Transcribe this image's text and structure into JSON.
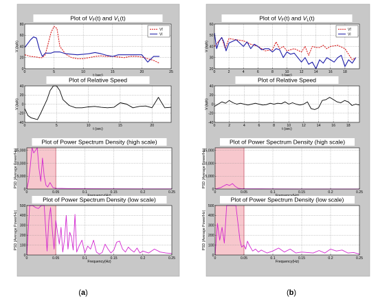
{
  "figure": {
    "captions": [
      {
        "open": "(",
        "letter": "a",
        "close": ")"
      },
      {
        "open": "(",
        "letter": "b",
        "close": ")"
      }
    ]
  },
  "colors": {
    "panel_bg": "#c8c8c8",
    "plot_bg": "#ffffff",
    "vf_line": "#d81e1e",
    "vl_line": "#1a1aa8",
    "rel_line": "#000000",
    "psd_line": "#d226cf",
    "band_fill": "#f7c7cd",
    "band_edge": "#e0506a",
    "grid": "#808080"
  },
  "chart_data": [
    {
      "id": "a1",
      "type": "line",
      "title": "Plot of Vᵣ(t) and Vₗ(t)",
      "title_parts": [
        "Plot of ",
        "V",
        "F",
        "(t) and ",
        "V",
        "L",
        "(t)"
      ],
      "xlabel": "t (sec)",
      "ylabel": "V (kph)",
      "xlim": [
        0,
        25
      ],
      "ylim": [
        0,
        80
      ],
      "xticks": [
        0,
        5,
        10,
        15,
        20,
        25
      ],
      "yticks": [
        0,
        20,
        40,
        60,
        80
      ],
      "xtick_labels": [
        "0",
        "5",
        "10",
        "15",
        "20",
        "25"
      ],
      "ytick_labels": [
        "0",
        "20",
        "40",
        "60",
        "80"
      ],
      "grid": true,
      "legend_position": "top-right",
      "series": [
        {
          "name": "Vf",
          "style": "dashed",
          "x": [
            0,
            1,
            2,
            2.5,
            3,
            3.5,
            4,
            4.5,
            5,
            5.5,
            6,
            7,
            8,
            9,
            10,
            11,
            12,
            13,
            14,
            15,
            16,
            17,
            18,
            19,
            20,
            21,
            22,
            23
          ],
          "y": [
            25,
            22,
            21,
            20,
            20,
            25,
            45,
            65,
            76,
            72,
            40,
            26,
            20,
            18,
            18,
            20,
            22,
            23,
            22,
            22,
            21,
            20,
            22,
            22,
            21,
            18,
            15,
            10
          ]
        },
        {
          "name": "Vl",
          "style": "solid",
          "x": [
            0,
            0.5,
            1,
            1.5,
            2,
            2.5,
            3,
            3.5,
            4,
            4.5,
            5,
            6,
            7,
            8,
            9,
            10,
            11,
            12,
            13,
            14,
            15,
            16,
            17,
            18,
            19,
            20,
            21,
            22,
            23
          ],
          "y": [
            38,
            45,
            52,
            57,
            55,
            35,
            22,
            28,
            28,
            28,
            30,
            30,
            27,
            26,
            25,
            26,
            27,
            29,
            27,
            24,
            22,
            25,
            25,
            25,
            25,
            25,
            12,
            22,
            22
          ]
        }
      ]
    },
    {
      "id": "a2",
      "type": "line",
      "title": "Plot of Relative Speed",
      "xlabel": "t (sec)",
      "ylabel": "V (kph)",
      "xlim": [
        0,
        23
      ],
      "ylim": [
        -40,
        40
      ],
      "xticks": [
        0,
        5,
        10,
        15,
        20
      ],
      "yticks": [
        -40,
        -20,
        0,
        20,
        40
      ],
      "xtick_labels": [
        "0",
        "5",
        "10",
        "15",
        "20"
      ],
      "ytick_labels": [
        "-40",
        "-20",
        "0",
        "20",
        "40"
      ],
      "grid": true,
      "series": [
        {
          "x": [
            0,
            0.5,
            1,
            1.5,
            2,
            2.5,
            3,
            3.5,
            4,
            4.5,
            5,
            5.5,
            6,
            7,
            8,
            9,
            10,
            11,
            12,
            13,
            14,
            15,
            16,
            17,
            18,
            19,
            20,
            21,
            22,
            23
          ],
          "y": [
            -10,
            -25,
            -30,
            -32,
            -34,
            -20,
            -5,
            10,
            30,
            40,
            40,
            30,
            10,
            -3,
            -8,
            -8,
            -6,
            -5,
            -7,
            -8,
            -7,
            3,
            0,
            -8,
            -5,
            -4,
            -8,
            15,
            -8,
            -7
          ]
        }
      ]
    },
    {
      "id": "a3",
      "type": "line",
      "title": "Plot of Power Spectrum Density (high scale)",
      "xlabel": "Frequency(Hz)",
      "ylabel": "PSD (Average Power/Hz)",
      "xlim": [
        0,
        0.25
      ],
      "ylim": [
        0,
        16000
      ],
      "xticks": [
        0,
        0.05,
        0.1,
        0.15,
        0.2,
        0.25
      ],
      "yticks": [
        0,
        5000,
        10000,
        15000
      ],
      "xtick_labels": [
        "0",
        "0.05",
        "0.1",
        "0.15",
        "0.2",
        "0.25"
      ],
      "ytick_labels": [
        "0",
        "5,000",
        "10,000",
        "15,000"
      ],
      "grid": true,
      "highlight_band": [
        0,
        0.05
      ],
      "series": [
        {
          "x": [
            0,
            0.003,
            0.006,
            0.009,
            0.012,
            0.015,
            0.018,
            0.021,
            0.024,
            0.027,
            0.03,
            0.033,
            0.036,
            0.04,
            0.045,
            0.05,
            0.06,
            0.07,
            0.08,
            0.1,
            0.15,
            0.2,
            0.25
          ],
          "y": [
            0,
            3000,
            9000,
            16000,
            14000,
            15000,
            16000,
            8000,
            3000,
            12000,
            5000,
            1500,
            800,
            2500,
            600,
            300,
            250,
            200,
            150,
            100,
            80,
            60,
            50
          ]
        }
      ]
    },
    {
      "id": "a4",
      "type": "line",
      "title": "Plot of Power Spectrum Density (low scale)",
      "xlabel": "Frequency(Hz)",
      "ylabel": "PSD (Average Power/Hz)",
      "xlim": [
        0,
        0.25
      ],
      "ylim": [
        0,
        500
      ],
      "xticks": [
        0,
        0.05,
        0.1,
        0.15,
        0.2,
        0.25
      ],
      "yticks": [
        0,
        100,
        200,
        300,
        400,
        500
      ],
      "xtick_labels": [
        "0",
        "0.05",
        "0.1",
        "0.15",
        "0.2",
        "0.25"
      ],
      "ytick_labels": [
        "0",
        "100",
        "200",
        "300",
        "400",
        "500"
      ],
      "grid": true,
      "highlight_band": [
        0,
        0.05
      ],
      "series": [
        {
          "x": [
            0,
            0.005,
            0.01,
            0.015,
            0.02,
            0.025,
            0.03,
            0.035,
            0.038,
            0.041,
            0.044,
            0.047,
            0.05,
            0.053,
            0.056,
            0.059,
            0.062,
            0.065,
            0.068,
            0.071,
            0.074,
            0.077,
            0.08,
            0.083,
            0.086,
            0.09,
            0.095,
            0.1,
            0.105,
            0.11,
            0.115,
            0.12,
            0.125,
            0.13,
            0.135,
            0.14,
            0.145,
            0.15,
            0.155,
            0.16,
            0.165,
            0.17,
            0.175,
            0.18,
            0.185,
            0.19,
            0.195,
            0.2,
            0.21,
            0.22,
            0.23,
            0.24,
            0.25
          ],
          "y": [
            0,
            500,
            500,
            480,
            470,
            500,
            500,
            40,
            350,
            480,
            250,
            60,
            350,
            230,
            110,
            280,
            30,
            160,
            400,
            60,
            230,
            180,
            50,
            410,
            30,
            90,
            150,
            20,
            90,
            60,
            150,
            30,
            10,
            25,
            110,
            60,
            20,
            50,
            130,
            140,
            60,
            30,
            80,
            50,
            30,
            70,
            20,
            40,
            20,
            60,
            30,
            20,
            15
          ]
        }
      ]
    },
    {
      "id": "b1",
      "type": "line",
      "title": "Plot of Vᵣ(t) and Vₗ(t)",
      "title_parts": [
        "Plot of ",
        "V",
        "F",
        "(t) and ",
        "V",
        "L",
        "(t)"
      ],
      "xlabel": "t (sec)",
      "ylabel": "V (kph)",
      "xlim": [
        0,
        20
      ],
      "ylim": [
        20,
        60
      ],
      "xticks": [
        0,
        2,
        4,
        6,
        8,
        10,
        12,
        14,
        16,
        18
      ],
      "yticks": [
        20,
        30,
        40,
        50,
        60
      ],
      "xtick_labels": [
        "0",
        "2",
        "4",
        "6",
        "8",
        "10",
        "12",
        "14",
        "16",
        "18"
      ],
      "ytick_labels": [
        "20",
        "30",
        "40",
        "50",
        "60"
      ],
      "grid": true,
      "legend_position": "top-right",
      "series": [
        {
          "name": "Vf",
          "style": "dashed",
          "x": [
            0,
            0.5,
            1,
            1.5,
            2,
            3,
            4,
            5,
            6,
            7,
            8,
            8.5,
            9,
            9.5,
            10,
            11,
            12,
            12.5,
            13,
            13.5,
            14,
            14.5,
            15,
            15.5,
            16,
            17,
            18,
            19,
            19.5
          ],
          "y": [
            40,
            44,
            48,
            38,
            47,
            46,
            45,
            42,
            40,
            36,
            37,
            44,
            38,
            40,
            36,
            38,
            35,
            40,
            32,
            40,
            39,
            39,
            41,
            38,
            40,
            41,
            38,
            28,
            30
          ]
        },
        {
          "name": "Vl",
          "style": "solid",
          "x": [
            0,
            0.3,
            0.6,
            1,
            1.3,
            1.6,
            2,
            3,
            4,
            4.5,
            5,
            5.5,
            6,
            6.5,
            7,
            7.5,
            8,
            8.5,
            9,
            9.5,
            10,
            10.5,
            11,
            11.5,
            12,
            12.5,
            13,
            13.5,
            14,
            14.5,
            15,
            15.5,
            16,
            16.5,
            17,
            17.5,
            18,
            18.5,
            19,
            19.5
          ],
          "y": [
            52,
            38,
            44,
            48,
            44,
            36,
            43,
            46,
            40,
            44,
            38,
            42,
            40,
            37,
            38,
            38,
            35,
            38,
            37,
            30,
            35,
            33,
            34,
            30,
            26,
            30,
            24,
            26,
            20,
            28,
            25,
            30,
            28,
            26,
            30,
            32,
            22,
            28,
            25,
            30
          ]
        }
      ]
    },
    {
      "id": "b2",
      "type": "line",
      "title": "Plot of Relative Speed",
      "xlabel": "t (sec)",
      "ylabel": "V (kph)",
      "xlim": [
        0,
        19.5
      ],
      "ylim": [
        -40,
        40
      ],
      "xticks": [
        0,
        2,
        4,
        6,
        8,
        10,
        12,
        14,
        16,
        18
      ],
      "yticks": [
        -40,
        -20,
        0,
        20,
        40
      ],
      "xtick_labels": [
        "0",
        "2",
        "4",
        "6",
        "8",
        "10",
        "12",
        "14",
        "16",
        "18"
      ],
      "ytick_labels": [
        "-40",
        "-20",
        "0",
        "20",
        "40"
      ],
      "grid": true,
      "series": [
        {
          "x": [
            0,
            0.5,
            1,
            1.5,
            2,
            2.5,
            3,
            3.5,
            4,
            4.5,
            5,
            5.5,
            6,
            6.5,
            7,
            7.5,
            8,
            8.5,
            9,
            9.5,
            10,
            10.5,
            11,
            11.5,
            12,
            12.5,
            13,
            13.5,
            14,
            14.5,
            15,
            15.5,
            16,
            16.5,
            17,
            17.5,
            18,
            18.5,
            19,
            19.5
          ],
          "y": [
            -5,
            0,
            5,
            2,
            8,
            3,
            0,
            2,
            0,
            -2,
            0,
            2,
            0,
            -2,
            -1,
            2,
            0,
            2,
            1,
            5,
            0,
            3,
            0,
            -2,
            0,
            5,
            -10,
            -12,
            -8,
            8,
            10,
            15,
            10,
            5,
            3,
            8,
            5,
            -3,
            0,
            -2
          ]
        }
      ]
    },
    {
      "id": "b3",
      "type": "line",
      "title": "Plot of Power Spectrum Density (high  scale)",
      "xlabel": "Frequency(Hz)",
      "ylabel": "PSD (Average Power/Hz)",
      "xlim": [
        0,
        0.25
      ],
      "ylim": [
        0,
        16000
      ],
      "xticks": [
        0,
        0.05,
        0.1,
        0.15,
        0.2,
        0.25
      ],
      "yticks": [
        0,
        5000,
        10000,
        15000
      ],
      "xtick_labels": [
        "0",
        "0.05",
        "0.1",
        "0.15",
        "0.2",
        "0.25"
      ],
      "ytick_labels": [
        "0",
        "5,000",
        "10,000",
        "15,000"
      ],
      "grid": true,
      "highlight_band": [
        0,
        0.05
      ],
      "series": [
        {
          "x": [
            0,
            0.005,
            0.01,
            0.015,
            0.02,
            0.025,
            0.03,
            0.035,
            0.04,
            0.045,
            0.05,
            0.07,
            0.1,
            0.15,
            0.2,
            0.25
          ],
          "y": [
            0,
            300,
            600,
            1200,
            1800,
            1400,
            2100,
            1000,
            300,
            150,
            100,
            80,
            60,
            40,
            30,
            20
          ]
        }
      ]
    },
    {
      "id": "b4",
      "type": "line",
      "title": "Plot of Power Spectrum Density (low scale)",
      "xlabel": "Frequency(Hz)",
      "ylabel": "PSD (Average Power/Hz)",
      "xlim": [
        0,
        0.25
      ],
      "ylim": [
        0,
        500
      ],
      "xticks": [
        0,
        0.05,
        0.1,
        0.15,
        0.2,
        0.25
      ],
      "yticks": [
        0,
        100,
        200,
        300,
        400,
        500
      ],
      "xtick_labels": [
        "0",
        "0.05",
        "0.1",
        "0.15",
        "0.2",
        "0.25"
      ],
      "ytick_labels": [
        "0",
        "100",
        "200",
        "300",
        "400",
        "500"
      ],
      "grid": true,
      "highlight_band": [
        0,
        0.05
      ],
      "series": [
        {
          "x": [
            0,
            0.004,
            0.008,
            0.012,
            0.016,
            0.02,
            0.024,
            0.028,
            0.032,
            0.036,
            0.04,
            0.043,
            0.046,
            0.05,
            0.053,
            0.056,
            0.06,
            0.065,
            0.07,
            0.075,
            0.08,
            0.09,
            0.1,
            0.11,
            0.12,
            0.13,
            0.14,
            0.15,
            0.16,
            0.17,
            0.18,
            0.19,
            0.2,
            0.21,
            0.22,
            0.23,
            0.24,
            0.25
          ],
          "y": [
            0,
            320,
            150,
            280,
            120,
            500,
            500,
            500,
            500,
            500,
            300,
            150,
            80,
            100,
            60,
            140,
            90,
            40,
            60,
            30,
            50,
            20,
            40,
            70,
            30,
            60,
            20,
            30,
            25,
            20,
            45,
            20,
            60,
            40,
            50,
            20,
            25,
            10
          ]
        }
      ]
    }
  ]
}
